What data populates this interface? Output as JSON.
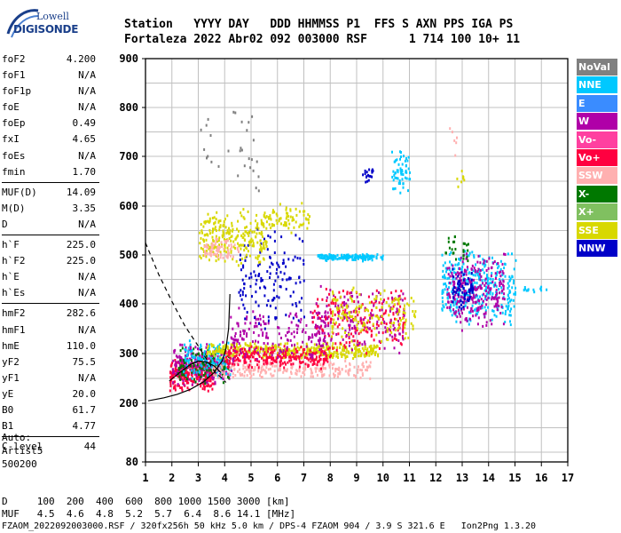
{
  "logo": {
    "line1": "Lowell",
    "line2": "DIGISONDE"
  },
  "header": {
    "line1": "Station   YYYY DAY   DDD HHMMSS P1  FFS S AXN PPS IGA PS",
    "line2": "Fortaleza 2022 Abr02 092 003000 RSF      1 714 100 10+ 11"
  },
  "params": [
    {
      "name": "foF2",
      "value": "4.200"
    },
    {
      "name": "foF1",
      "value": "N/A"
    },
    {
      "name": "foF1p",
      "value": "N/A"
    },
    {
      "name": "foE",
      "value": "N/A"
    },
    {
      "name": "foEp",
      "value": "0.49"
    },
    {
      "name": "fxI",
      "value": "4.65"
    },
    {
      "name": "foEs",
      "value": "N/A"
    },
    {
      "name": "fmin",
      "value": "1.70"
    },
    {
      "name": "MUF(D)",
      "value": "14.09"
    },
    {
      "name": "M(D)",
      "value": "3.35"
    },
    {
      "name": "D",
      "value": "N/A"
    },
    {
      "name": "h`F",
      "value": "225.0"
    },
    {
      "name": "h`F2",
      "value": "225.0"
    },
    {
      "name": "h`E",
      "value": "N/A"
    },
    {
      "name": "h`Es",
      "value": "N/A"
    },
    {
      "name": "hmF2",
      "value": "282.6"
    },
    {
      "name": "hmF1",
      "value": "N/A"
    },
    {
      "name": "hmE",
      "value": "110.0"
    },
    {
      "name": "yF2",
      "value": "75.5"
    },
    {
      "name": "yF1",
      "value": "N/A"
    },
    {
      "name": "yE",
      "value": "20.0"
    },
    {
      "name": "B0",
      "value": "61.7"
    },
    {
      "name": "B1",
      "value": "4.77"
    },
    {
      "name": "C-level",
      "value": "44"
    }
  ],
  "auto": {
    "line1": "Auto:",
    "line2": "Artist5",
    "line3": "500200"
  },
  "legend": [
    {
      "label": "NoVal",
      "color": "#808080"
    },
    {
      "label": "NNE",
      "color": "#00c8ff"
    },
    {
      "label": "E",
      "color": "#3a8cff"
    },
    {
      "label": "W",
      "color": "#b000a8"
    },
    {
      "label": "Vo-",
      "color": "#ff40a0"
    },
    {
      "label": "Vo+",
      "color": "#ff0040"
    },
    {
      "label": "SSW",
      "color": "#ffb0b0"
    },
    {
      "label": "X-",
      "color": "#007800"
    },
    {
      "label": "X+",
      "color": "#80c060"
    },
    {
      "label": "SSE",
      "color": "#d8d800"
    },
    {
      "label": "NNW",
      "color": "#0000c8"
    }
  ],
  "bottom": {
    "line1": "D     100  200  400  600  800 1000 1500 3000 [km]",
    "line2": "MUF   4.5  4.6  4.8  5.2  5.7  6.4  8.6 14.1 [MHz]",
    "line3": "FZAOM_2022092003000.RSF / 320fx256h 50 kHz 5.0 km / DPS-4 FZAOM 904 / 3.9 S 321.6 E   Ion2Png 1.3.20"
  },
  "chart_data": {
    "type": "scatter",
    "xlim": [
      1,
      17
    ],
    "ylim": [
      80,
      900
    ],
    "xticks": [
      "1",
      "2",
      "3",
      "4",
      "5",
      "6",
      "7",
      "8",
      "9",
      "10",
      "11",
      "12",
      "13",
      "14",
      "15",
      "16",
      "17"
    ],
    "yticks": [
      "80",
      "200",
      "300",
      "400",
      "500",
      "600",
      "700",
      "800",
      "900"
    ],
    "grid": true,
    "clusters": [
      {
        "series": "Vo+",
        "x": [
          1.9,
          3.6
        ],
        "y": [
          225,
          300
        ],
        "n": 320
      },
      {
        "series": "W",
        "x": [
          2.0,
          4.3
        ],
        "y": [
          235,
          330
        ],
        "n": 220
      },
      {
        "series": "X-",
        "x": [
          2.2,
          4.2
        ],
        "y": [
          240,
          320
        ],
        "n": 120
      },
      {
        "series": "NNE",
        "x": [
          2.4,
          4.2
        ],
        "y": [
          250,
          330
        ],
        "n": 120
      },
      {
        "series": "SSE",
        "x": [
          3.3,
          9.8
        ],
        "y": [
          290,
          325
        ],
        "n": 420
      },
      {
        "series": "SSW",
        "x": [
          3.5,
          9.5
        ],
        "y": [
          250,
          290
        ],
        "n": 220
      },
      {
        "series": "Vo+",
        "x": [
          4.0,
          8.0
        ],
        "y": [
          270,
          320
        ],
        "n": 260
      },
      {
        "series": "W",
        "x": [
          4.2,
          7.8
        ],
        "y": [
          280,
          400
        ],
        "n": 160
      },
      {
        "series": "NNW",
        "x": [
          4.5,
          7.0
        ],
        "y": [
          340,
          560
        ],
        "n": 140
      },
      {
        "series": "SSE",
        "x": [
          3.0,
          5.6
        ],
        "y": [
          480,
          600
        ],
        "n": 260
      },
      {
        "series": "SSW",
        "x": [
          3.2,
          4.5
        ],
        "y": [
          490,
          540
        ],
        "n": 70
      },
      {
        "series": "SSE",
        "x": [
          5.6,
          7.2
        ],
        "y": [
          540,
          610
        ],
        "n": 70
      },
      {
        "series": "NNE",
        "x": [
          7.5,
          10.0
        ],
        "y": [
          490,
          505
        ],
        "n": 150
      },
      {
        "series": "Vo+",
        "x": [
          7.3,
          10.8
        ],
        "y": [
          300,
          440
        ],
        "n": 200
      },
      {
        "series": "W",
        "x": [
          7.4,
          10.8
        ],
        "y": [
          300,
          440
        ],
        "n": 160
      },
      {
        "series": "SSE",
        "x": [
          8.0,
          11.2
        ],
        "y": [
          320,
          440
        ],
        "n": 160
      },
      {
        "series": "NNE",
        "x": [
          10.3,
          11.0
        ],
        "y": [
          620,
          720
        ],
        "n": 60
      },
      {
        "series": "NNW",
        "x": [
          9.2,
          9.6
        ],
        "y": [
          640,
          690
        ],
        "n": 20
      },
      {
        "series": "NNE",
        "x": [
          12.2,
          15.0
        ],
        "y": [
          350,
          520
        ],
        "n": 340
      },
      {
        "series": "W",
        "x": [
          12.4,
          14.6
        ],
        "y": [
          340,
          520
        ],
        "n": 260
      },
      {
        "series": "NNW",
        "x": [
          12.6,
          13.4
        ],
        "y": [
          390,
          480
        ],
        "n": 60
      },
      {
        "series": "X-",
        "x": [
          12.3,
          13.3
        ],
        "y": [
          480,
          550
        ],
        "n": 25
      },
      {
        "series": "SSE",
        "x": [
          12.6,
          13.3
        ],
        "y": [
          640,
          680
        ],
        "n": 8
      },
      {
        "series": "SSW",
        "x": [
          12.4,
          12.8
        ],
        "y": [
          700,
          780
        ],
        "n": 6
      },
      {
        "series": "NNE",
        "x": [
          15.3,
          16.2
        ],
        "y": [
          425,
          440
        ],
        "n": 12
      },
      {
        "series": "NoVal",
        "x": [
          3.0,
          5.3
        ],
        "y": [
          620,
          820
        ],
        "n": 30
      }
    ],
    "curves": [
      {
        "style": "dashed",
        "points": [
          [
            1.0,
            525
          ],
          [
            1.5,
            460
          ],
          [
            2.0,
            405
          ],
          [
            2.5,
            355
          ],
          [
            3.0,
            315
          ],
          [
            3.3,
            290
          ],
          [
            3.6,
            265
          ],
          [
            3.9,
            250
          ],
          [
            4.05,
            242
          ]
        ]
      },
      {
        "style": "solid",
        "points": [
          [
            1.1,
            205
          ],
          [
            1.7,
            211
          ],
          [
            2.2,
            218
          ],
          [
            2.7,
            228
          ],
          [
            3.2,
            243
          ],
          [
            3.6,
            262
          ],
          [
            3.9,
            285
          ],
          [
            4.05,
            310
          ],
          [
            4.15,
            350
          ],
          [
            4.2,
            420
          ]
        ]
      },
      {
        "style": "solid",
        "points": [
          [
            1.9,
            245
          ],
          [
            2.3,
            262
          ],
          [
            2.7,
            278
          ],
          [
            3.0,
            285
          ],
          [
            3.3,
            283
          ],
          [
            3.6,
            275
          ],
          [
            3.85,
            262
          ]
        ]
      }
    ]
  }
}
